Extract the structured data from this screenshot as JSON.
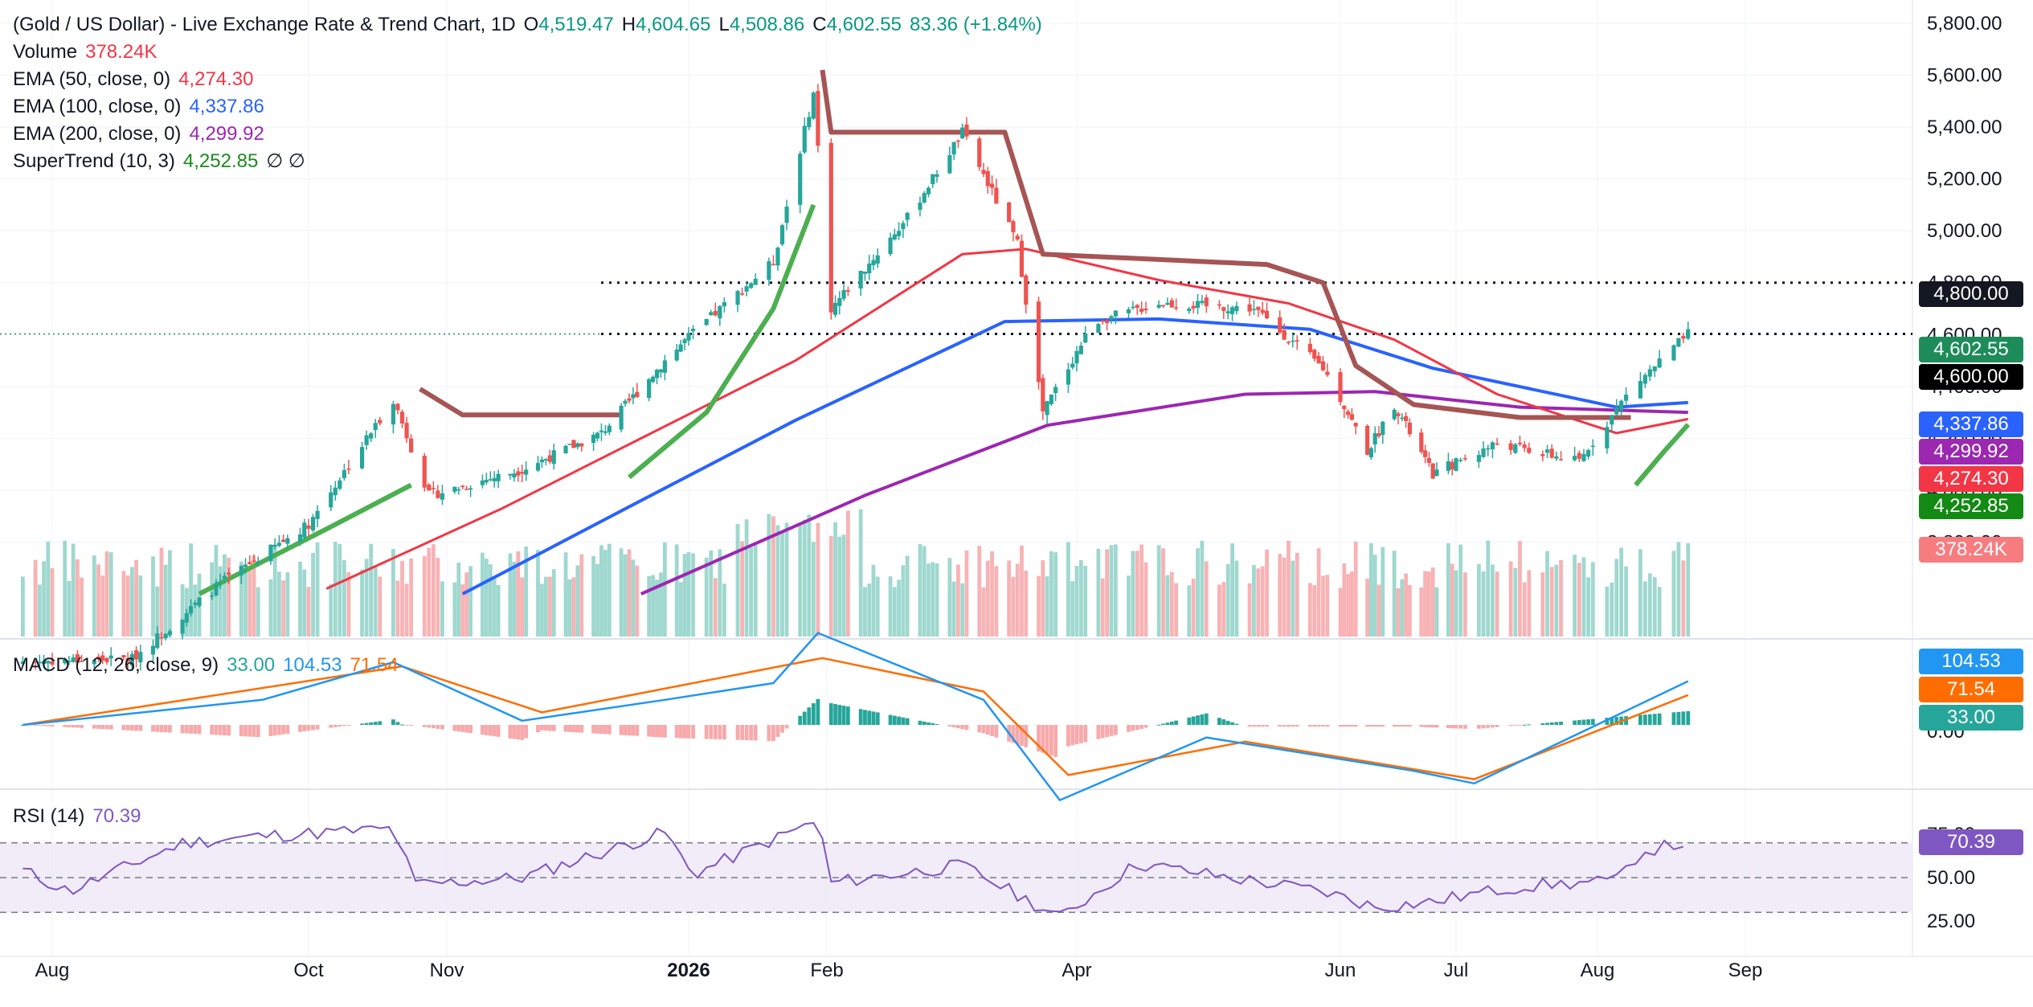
{
  "header": {
    "title": "(Gold / US Dollar) - Live Exchange Rate & Trend Chart, 1D",
    "open_label": "O",
    "open": "4,519.47",
    "high_label": "H",
    "high": "4,604.65",
    "low_label": "L",
    "low": "4,508.86",
    "close_label": "C",
    "close": "4,602.55",
    "change": "83.36 (+1.84%)"
  },
  "legend": {
    "volume": {
      "label": "Volume",
      "value": "378.24K",
      "color": "#f23645"
    },
    "ema50": {
      "label": "EMA (50, close, 0)",
      "value": "4,274.30",
      "color": "#f23645"
    },
    "ema100": {
      "label": "EMA (100, close, 0)",
      "value": "4,337.86",
      "color": "#2962ff"
    },
    "ema200": {
      "label": "EMA (200, close, 0)",
      "value": "4,299.92",
      "color": "#9c27b0"
    },
    "supertrend": {
      "label": "SuperTrend (10, 3)",
      "value": "4,252.85",
      "color": "#1b8a1b",
      "extra": "∅ ∅"
    },
    "macd": {
      "label": "MACD (12, 26, close, 9)",
      "hist": "33.00",
      "macd": "104.53",
      "signal": "71.54"
    },
    "rsi": {
      "label": "RSI (14)",
      "value": "70.39"
    }
  },
  "price_tags": {
    "level_4800": "4,800.00",
    "last": "4,602.55",
    "level_4600": "4,600.00",
    "ema100": "4,337.86",
    "ema200": "4,299.92",
    "ema50": "4,274.30",
    "supertrend": "4,252.85",
    "volume": "378.24K",
    "macd": "104.53",
    "signal": "71.54",
    "hist": "33.00",
    "rsi": "70.39"
  },
  "colors": {
    "up": "#26a69a",
    "down": "#ef5350",
    "ema50": "#f23645",
    "ema100": "#2962ff",
    "ema200": "#9c27b0",
    "supertrend_up": "#4caf50",
    "supertrend_down": "#a65454",
    "macd_line": "#2196f3",
    "signal_line": "#ff6d00",
    "rsi_line": "#7e57c2"
  },
  "chart_data": {
    "type": "line",
    "subtype": "candlestick_with_indicators",
    "x_labels": [
      "Aug",
      "Oct",
      "Nov",
      "2026",
      "Feb",
      "Apr",
      "Jun",
      "Jul",
      "Aug",
      "Sep"
    ],
    "price_axis_ticks": [
      "5,800.00",
      "5,600.00",
      "5,400.00",
      "5,200.00",
      "5,000.00",
      "4,800.00",
      "4,600.00",
      "4,400.00",
      "4,200.00",
      "4,000.00",
      "3,800.00"
    ],
    "price_ylim": [
      3600,
      5800
    ],
    "reference_levels": [
      4800,
      4602.55
    ],
    "close_series": [
      {
        "x": "2025-07-25",
        "y": 3340
      },
      {
        "x": "2025-08-20",
        "y": 3350
      },
      {
        "x": "2025-09-10",
        "y": 3640
      },
      {
        "x": "2025-10-01",
        "y": 3870
      },
      {
        "x": "2025-10-20",
        "y": 4350
      },
      {
        "x": "2025-10-28",
        "y": 3980
      },
      {
        "x": "2025-11-20",
        "y": 4080
      },
      {
        "x": "2025-12-10",
        "y": 4220
      },
      {
        "x": "2025-12-26",
        "y": 4500
      },
      {
        "x": "2026-01-20",
        "y": 4880
      },
      {
        "x": "2026-01-29",
        "y": 5530
      },
      {
        "x": "2026-02-02",
        "y": 4700
      },
      {
        "x": "2026-02-20",
        "y": 5050
      },
      {
        "x": "2026-03-05",
        "y": 5380
      },
      {
        "x": "2026-03-18",
        "y": 4950
      },
      {
        "x": "2026-03-24",
        "y": 4300
      },
      {
        "x": "2026-04-05",
        "y": 4650
      },
      {
        "x": "2026-04-20",
        "y": 4720
      },
      {
        "x": "2026-05-12",
        "y": 4700
      },
      {
        "x": "2026-05-28",
        "y": 4470
      },
      {
        "x": "2026-06-08",
        "y": 4150
      },
      {
        "x": "2026-06-15",
        "y": 4330
      },
      {
        "x": "2026-06-25",
        "y": 4060
      },
      {
        "x": "2026-07-10",
        "y": 4180
      },
      {
        "x": "2026-07-28",
        "y": 4110
      },
      {
        "x": "2026-08-08",
        "y": 4390
      },
      {
        "x": "2026-08-20",
        "y": 4602.55
      }
    ],
    "ema50": [
      {
        "x": "2025-10-05",
        "y": 3620
      },
      {
        "x": "2025-11-15",
        "y": 3930
      },
      {
        "x": "2025-12-20",
        "y": 4200
      },
      {
        "x": "2026-01-25",
        "y": 4500
      },
      {
        "x": "2026-03-05",
        "y": 4910
      },
      {
        "x": "2026-03-20",
        "y": 4930
      },
      {
        "x": "2026-04-20",
        "y": 4810
      },
      {
        "x": "2026-05-20",
        "y": 4720
      },
      {
        "x": "2026-06-15",
        "y": 4580
      },
      {
        "x": "2026-07-10",
        "y": 4370
      },
      {
        "x": "2026-08-05",
        "y": 4220
      },
      {
        "x": "2026-08-20",
        "y": 4274.3
      }
    ],
    "ema100": [
      {
        "x": "2025-11-05",
        "y": 3600
      },
      {
        "x": "2025-12-15",
        "y": 3920
      },
      {
        "x": "2026-01-25",
        "y": 4270
      },
      {
        "x": "2026-03-15",
        "y": 4650
      },
      {
        "x": "2026-04-20",
        "y": 4660
      },
      {
        "x": "2026-05-25",
        "y": 4620
      },
      {
        "x": "2026-06-25",
        "y": 4470
      },
      {
        "x": "2026-08-05",
        "y": 4320
      },
      {
        "x": "2026-08-20",
        "y": 4337.86
      }
    ],
    "ema200": [
      {
        "x": "2025-12-20",
        "y": 3600
      },
      {
        "x": "2026-02-10",
        "y": 3980
      },
      {
        "x": "2026-03-25",
        "y": 4250
      },
      {
        "x": "2026-05-10",
        "y": 4370
      },
      {
        "x": "2026-06-10",
        "y": 4380
      },
      {
        "x": "2026-07-15",
        "y": 4320
      },
      {
        "x": "2026-08-20",
        "y": 4299.92
      }
    ],
    "supertrend": [
      {
        "x": "2025-09-05",
        "y": 3600,
        "trend": "up"
      },
      {
        "x": "2025-10-05",
        "y": 3850,
        "trend": "up"
      },
      {
        "x": "2025-10-24",
        "y": 4020,
        "trend": "up"
      },
      {
        "x": "2025-10-26",
        "y": 4390,
        "trend": "down"
      },
      {
        "x": "2025-11-05",
        "y": 4290,
        "trend": "down"
      },
      {
        "x": "2025-12-15",
        "y": 4290,
        "trend": "down"
      },
      {
        "x": "2025-12-17",
        "y": 4050,
        "trend": "up"
      },
      {
        "x": "2026-01-05",
        "y": 4300,
        "trend": "up"
      },
      {
        "x": "2026-01-20",
        "y": 4700,
        "trend": "up"
      },
      {
        "x": "2026-01-29",
        "y": 5100,
        "trend": "up"
      },
      {
        "x": "2026-01-31",
        "y": 5620,
        "trend": "down"
      },
      {
        "x": "2026-02-02",
        "y": 5380,
        "trend": "down"
      },
      {
        "x": "2026-03-15",
        "y": 5380,
        "trend": "down"
      },
      {
        "x": "2026-03-24",
        "y": 4910,
        "trend": "down"
      },
      {
        "x": "2026-05-15",
        "y": 4870,
        "trend": "down"
      },
      {
        "x": "2026-05-28",
        "y": 4800,
        "trend": "down"
      },
      {
        "x": "2026-06-05",
        "y": 4480,
        "trend": "down"
      },
      {
        "x": "2026-06-20",
        "y": 4330,
        "trend": "down"
      },
      {
        "x": "2026-07-15",
        "y": 4280,
        "trend": "down"
      },
      {
        "x": "2026-08-08",
        "y": 4280,
        "trend": "down"
      },
      {
        "x": "2026-08-09",
        "y": 4020,
        "trend": "up"
      },
      {
        "x": "2026-08-15",
        "y": 4150,
        "trend": "up"
      },
      {
        "x": "2026-08-20",
        "y": 4252.85,
        "trend": "up"
      }
    ],
    "macd_axis_ticks": [
      "0.00"
    ],
    "macd": [
      {
        "x": "2025-07-25",
        "y": 0
      },
      {
        "x": "2025-09-20",
        "y": 60
      },
      {
        "x": "2025-10-20",
        "y": 150
      },
      {
        "x": "2025-11-20",
        "y": 10
      },
      {
        "x": "2025-12-26",
        "y": 60
      },
      {
        "x": "2026-01-20",
        "y": 100
      },
      {
        "x": "2026-01-30",
        "y": 220
      },
      {
        "x": "2026-03-10",
        "y": 60
      },
      {
        "x": "2026-03-28",
        "y": -180
      },
      {
        "x": "2026-05-01",
        "y": -30
      },
      {
        "x": "2026-06-20",
        "y": -110
      },
      {
        "x": "2026-07-05",
        "y": -140
      },
      {
        "x": "2026-08-20",
        "y": 104.53
      }
    ],
    "signal": [
      {
        "x": "2025-07-25",
        "y": 0
      },
      {
        "x": "2025-10-22",
        "y": 140
      },
      {
        "x": "2025-11-25",
        "y": 30
      },
      {
        "x": "2026-01-31",
        "y": 160
      },
      {
        "x": "2026-03-10",
        "y": 80
      },
      {
        "x": "2026-03-30",
        "y": -120
      },
      {
        "x": "2026-05-10",
        "y": -40
      },
      {
        "x": "2026-07-05",
        "y": -130
      },
      {
        "x": "2026-08-20",
        "y": 71.54
      }
    ],
    "rsi_axis_ticks": [
      "75.00",
      "50.00",
      "25.00"
    ],
    "rsi_levels": [
      70,
      50,
      30
    ],
    "rsi": [
      {
        "x": "2025-07-25",
        "y": 54
      },
      {
        "x": "2025-08-05",
        "y": 42
      },
      {
        "x": "2025-09-01",
        "y": 70
      },
      {
        "x": "2025-09-20",
        "y": 74
      },
      {
        "x": "2025-10-20",
        "y": 78
      },
      {
        "x": "2025-10-25",
        "y": 46
      },
      {
        "x": "2025-11-20",
        "y": 50
      },
      {
        "x": "2025-12-26",
        "y": 76
      },
      {
        "x": "2026-01-02",
        "y": 52
      },
      {
        "x": "2026-01-30",
        "y": 83
      },
      {
        "x": "2026-02-02",
        "y": 47
      },
      {
        "x": "2026-03-05",
        "y": 57
      },
      {
        "x": "2026-03-28",
        "y": 27
      },
      {
        "x": "2026-04-15",
        "y": 58
      },
      {
        "x": "2026-05-28",
        "y": 42
      },
      {
        "x": "2026-06-10",
        "y": 33
      },
      {
        "x": "2026-06-25",
        "y": 36
      },
      {
        "x": "2026-07-15",
        "y": 45
      },
      {
        "x": "2026-08-05",
        "y": 48
      },
      {
        "x": "2026-08-10",
        "y": 65
      },
      {
        "x": "2026-08-20",
        "y": 70.39
      }
    ]
  }
}
